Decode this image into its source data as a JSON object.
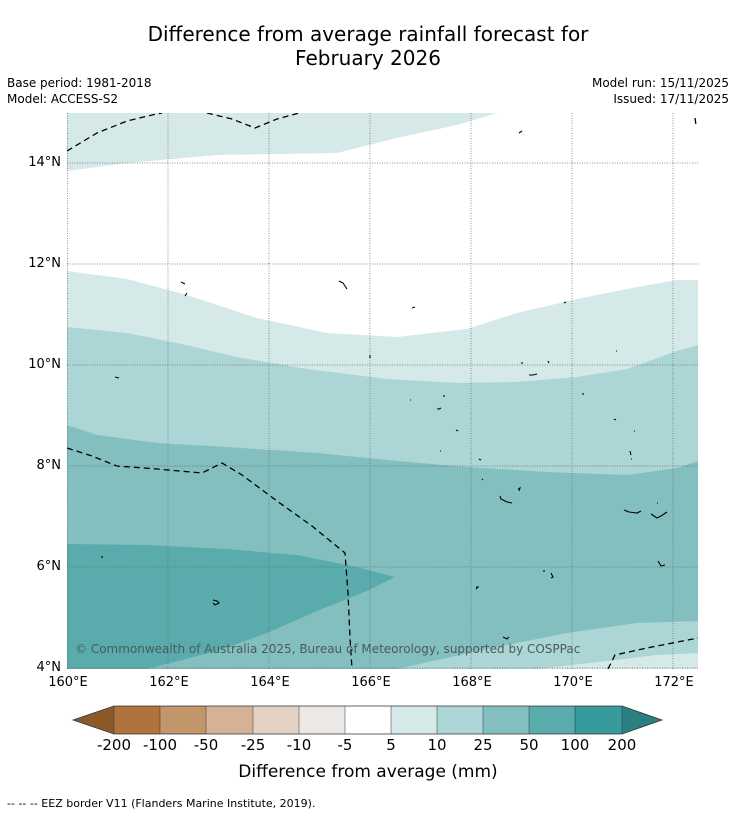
{
  "title": {
    "line1": "Difference from average rainfall forecast for",
    "line2": "February 2026"
  },
  "info": {
    "base_period": "Base period: 1981-2018",
    "model": "Model: ACCESS-S2",
    "model_run": "Model run: 15/11/2025",
    "issued": "Issued: 17/11/2025"
  },
  "map": {
    "lat_ticks": [
      "14°N",
      "12°N",
      "10°N",
      "8°N",
      "6°N",
      "4°N"
    ],
    "lon_ticks": [
      "160°E",
      "162°E",
      "164°E",
      "166°E",
      "168°E",
      "170°E",
      "172°E"
    ],
    "copyright": "© Commonwealth of Australia 2025, Bureau of Meteorology, supported by COSPPac"
  },
  "colorbar": {
    "labels": [
      "-200",
      "-100",
      "-50",
      "-25",
      "-10",
      "-5",
      "5",
      "10",
      "25",
      "50",
      "100",
      "200"
    ],
    "colors": [
      "#8c5a2a",
      "#b0733d",
      "#c2956a",
      "#d5b295",
      "#e6d2c2",
      "#ece8e5",
      "#ffffff",
      "#d4e9e8",
      "#acd5d5",
      "#84bfbf",
      "#5aacac",
      "#359b9b",
      "#2a8080"
    ],
    "title": "Difference from average (mm)"
  },
  "footnote": "--  --  -- EEZ border V11 (Flanders Marine Institute, 2019)."
}
